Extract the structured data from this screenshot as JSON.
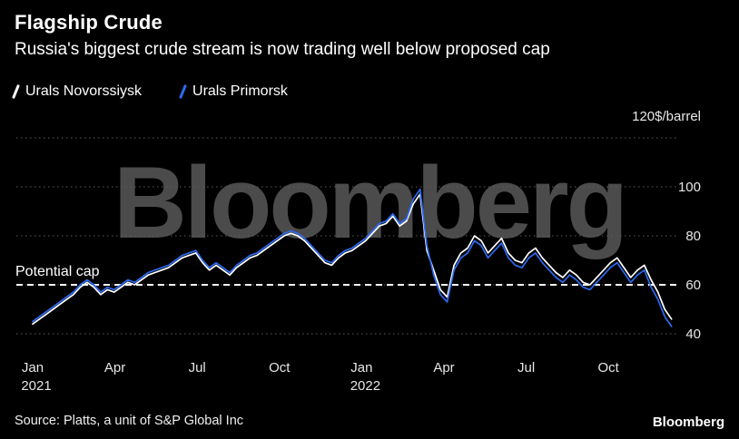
{
  "header": {
    "title": "Flagship Crude",
    "subtitle": "Russia's biggest crude stream is now trading well below proposed cap"
  },
  "legend": [
    {
      "label": "Urals Novorssiysk",
      "color": "#ffffff"
    },
    {
      "label": "Urals Primorsk",
      "color": "#2d6af2"
    }
  ],
  "watermark": "Bloomberg",
  "footer": {
    "source": "Source: Platts, a unit of S&P Global Inc",
    "logo": "Bloomberg"
  },
  "colors": {
    "background": "#000000",
    "gridline": "#5c5c5c",
    "axis_text": "#e6e6e6",
    "cap_line": "#ffffff",
    "watermark": "#4b4b4b"
  },
  "chart_data": {
    "type": "line",
    "title": "Flagship Crude",
    "subtitle": "Russia's biggest crude stream is now trading well below proposed cap",
    "unit_label": "120$/barrel",
    "ylim": [
      40,
      120
    ],
    "months_span": 23.3,
    "grid": "dotted-horizontal",
    "legend_position": "top-left",
    "yticks": [
      {
        "v": 40,
        "label": "40"
      },
      {
        "v": 60,
        "label": "60"
      },
      {
        "v": 80,
        "label": "80"
      },
      {
        "v": 100,
        "label": "100"
      },
      {
        "v": 120,
        "label": ""
      }
    ],
    "xticks": [
      {
        "m": 0,
        "label": "Jan",
        "year": "2021"
      },
      {
        "m": 3,
        "label": "Apr"
      },
      {
        "m": 6,
        "label": "Jul"
      },
      {
        "m": 9,
        "label": "Oct"
      },
      {
        "m": 12,
        "label": "Jan",
        "year": "2022"
      },
      {
        "m": 15,
        "label": "Apr"
      },
      {
        "m": 18,
        "label": "Jul"
      },
      {
        "m": 21,
        "label": "Oct"
      }
    ],
    "annotation": {
      "label": "Potential cap",
      "value": 60,
      "style": "dashed-white"
    },
    "series": [
      {
        "name": "Urals Novorssiysk",
        "color": "#ffffff",
        "values": [
          44,
          46,
          48,
          50,
          52,
          54,
          56,
          59,
          61,
          59,
          56,
          58,
          57,
          59,
          61,
          60,
          62,
          64,
          65,
          66,
          67,
          69,
          71,
          72,
          73,
          69,
          66,
          68,
          66,
          64,
          67,
          69,
          71,
          72,
          74,
          76,
          78,
          80,
          81,
          80,
          78,
          75,
          72,
          69,
          68,
          71,
          73,
          74,
          76,
          78,
          81,
          84,
          85,
          88,
          84,
          86,
          93,
          97,
          74,
          66,
          58,
          55,
          68,
          73,
          75,
          80,
          78,
          73,
          76,
          79,
          73,
          70,
          69,
          73,
          75,
          71,
          68,
          65,
          63,
          66,
          64,
          61,
          60,
          63,
          66,
          69,
          71,
          67,
          63,
          66,
          68,
          62,
          57,
          50,
          46
        ]
      },
      {
        "name": "Urals Primorsk",
        "color": "#2d6af2",
        "values": [
          45,
          47,
          49,
          51,
          53,
          55,
          57,
          60,
          62,
          60,
          57,
          59,
          58,
          60,
          62,
          61,
          63,
          65,
          66,
          67,
          68,
          70,
          72,
          73,
          74,
          70,
          67,
          69,
          67,
          65,
          68,
          70,
          72,
          73,
          75,
          77,
          79,
          81,
          82,
          81,
          79,
          76,
          73,
          70,
          69,
          72,
          74,
          75,
          77,
          79,
          82,
          85,
          86,
          89,
          85,
          87,
          95,
          99,
          76,
          64,
          56,
          53,
          66,
          71,
          73,
          78,
          76,
          71,
          74,
          77,
          71,
          68,
          67,
          71,
          73,
          69,
          66,
          63,
          61,
          64,
          62,
          59,
          58,
          61,
          64,
          67,
          69,
          65,
          61,
          64,
          66,
          59,
          54,
          47,
          43
        ]
      }
    ]
  }
}
